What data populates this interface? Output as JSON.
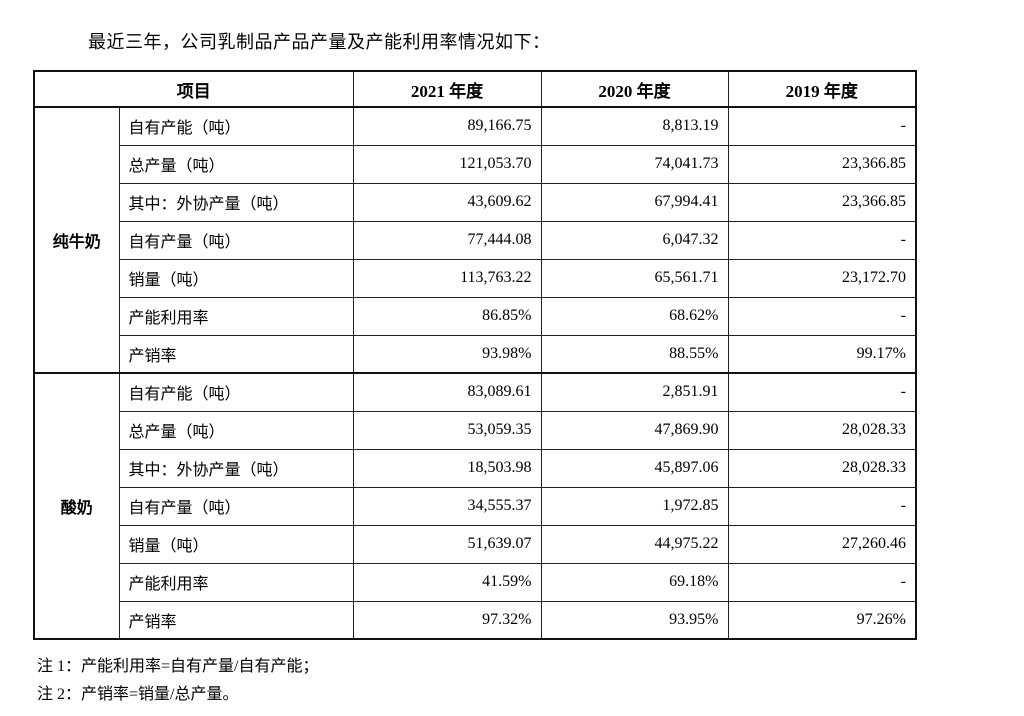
{
  "title": "最近三年，公司乳制品产品产量及产能利用率情况如下：",
  "table": {
    "headers": {
      "item": "项目",
      "y2021": "2021 年度",
      "y2020": "2020 年度",
      "y2019": "2019 年度"
    },
    "groups": [
      {
        "name": "纯牛奶",
        "rows": [
          {
            "label": "自有产能（吨）",
            "y2021": "89,166.75",
            "y2020": "8,813.19",
            "y2019": "-"
          },
          {
            "label": "总产量（吨）",
            "y2021": "121,053.70",
            "y2020": "74,041.73",
            "y2019": "23,366.85"
          },
          {
            "label": "其中：外协产量（吨）",
            "y2021": "43,609.62",
            "y2020": "67,994.41",
            "y2019": "23,366.85"
          },
          {
            "label": "自有产量（吨）",
            "y2021": "77,444.08",
            "y2020": "6,047.32",
            "y2019": "-"
          },
          {
            "label": "销量（吨）",
            "y2021": "113,763.22",
            "y2020": "65,561.71",
            "y2019": "23,172.70"
          },
          {
            "label": "产能利用率",
            "y2021": "86.85%",
            "y2020": "68.62%",
            "y2019": "-"
          },
          {
            "label": "产销率",
            "y2021": "93.98%",
            "y2020": "88.55%",
            "y2019": "99.17%"
          }
        ]
      },
      {
        "name": "酸奶",
        "rows": [
          {
            "label": "自有产能（吨）",
            "y2021": "83,089.61",
            "y2020": "2,851.91",
            "y2019": "-"
          },
          {
            "label": "总产量（吨）",
            "y2021": "53,059.35",
            "y2020": "47,869.90",
            "y2019": "28,028.33"
          },
          {
            "label": "其中：外协产量（吨）",
            "y2021": "18,503.98",
            "y2020": "45,897.06",
            "y2019": "28,028.33"
          },
          {
            "label": "自有产量（吨）",
            "y2021": "34,555.37",
            "y2020": "1,972.85",
            "y2019": "-"
          },
          {
            "label": "销量（吨）",
            "y2021": "51,639.07",
            "y2020": "44,975.22",
            "y2019": "27,260.46"
          },
          {
            "label": "产能利用率",
            "y2021": "41.59%",
            "y2020": "69.18%",
            "y2019": "-"
          },
          {
            "label": "产销率",
            "y2021": "97.32%",
            "y2020": "93.95%",
            "y2019": "97.26%"
          }
        ]
      }
    ]
  },
  "notes": [
    "注 1：产能利用率=自有产量/自有产能；",
    "注 2：产销率=销量/总产量。"
  ]
}
